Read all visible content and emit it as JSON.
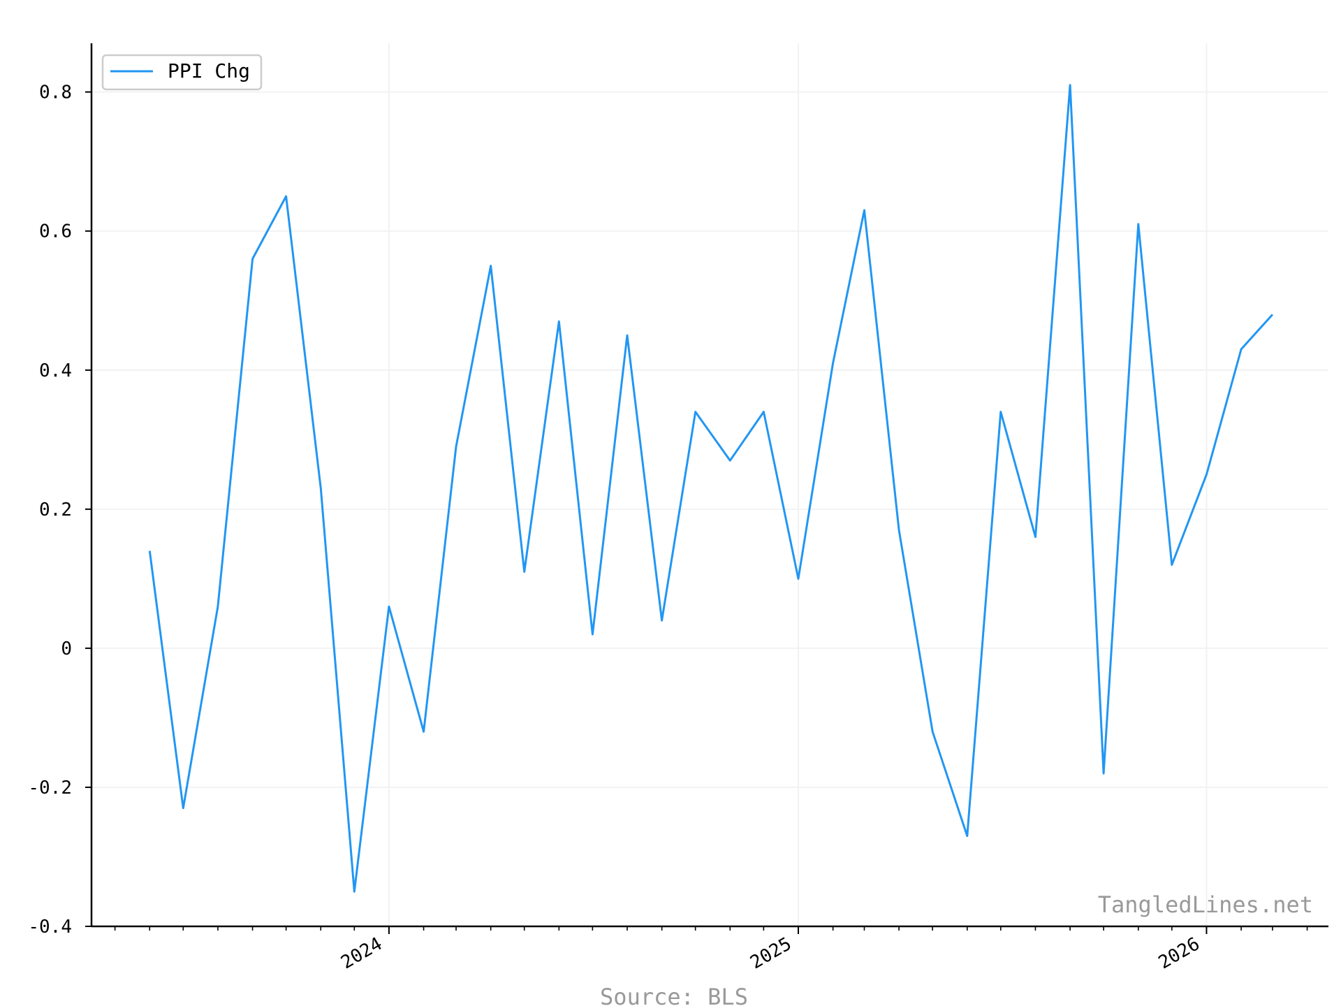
{
  "chart_data": {
    "type": "line",
    "x": [
      "2023-06",
      "2023-07",
      "2023-08",
      "2023-09",
      "2023-10",
      "2023-11",
      "2023-12",
      "2024-01",
      "2024-02",
      "2024-03",
      "2024-04",
      "2024-05",
      "2024-06",
      "2024-07",
      "2024-08",
      "2024-09",
      "2024-10",
      "2024-11",
      "2024-12",
      "2025-01",
      "2025-02",
      "2025-03",
      "2025-04",
      "2025-05",
      "2025-06",
      "2025-07",
      "2025-08",
      "2025-09",
      "2025-10",
      "2025-11",
      "2025-12",
      "2026-01",
      "2026-02",
      "2026-03"
    ],
    "series": [
      {
        "name": "PPI Chg",
        "color": "#2196F3",
        "values": [
          0.14,
          -0.23,
          0.06,
          0.56,
          0.65,
          0.23,
          -0.35,
          0.06,
          -0.12,
          0.29,
          0.55,
          0.11,
          0.47,
          0.02,
          0.45,
          0.04,
          0.34,
          0.27,
          0.34,
          0.1,
          0.41,
          0.63,
          0.17,
          -0.12,
          -0.27,
          0.34,
          0.16,
          0.81,
          -0.18,
          0.61,
          0.12,
          0.25,
          0.43,
          0.48
        ]
      }
    ],
    "ylim": [
      -0.4,
      0.87
    ],
    "yticks": [
      -0.4,
      -0.2,
      0,
      0.2,
      0.4,
      0.6,
      0.8
    ],
    "ytick_labels": [
      "-0.4",
      "-0.2",
      "0",
      "0.2",
      "0.4",
      "0.6",
      "0.8"
    ],
    "xlim": [
      "2023-04-10",
      "2026-04-20"
    ],
    "xticks": [
      "2024-01",
      "2025-01",
      "2026-01"
    ],
    "xtick_labels": [
      "2024",
      "2025",
      "2026"
    ],
    "grid": true,
    "legend_position": "top-left"
  },
  "watermark": "TangledLines.net",
  "source": "Source: BLS"
}
